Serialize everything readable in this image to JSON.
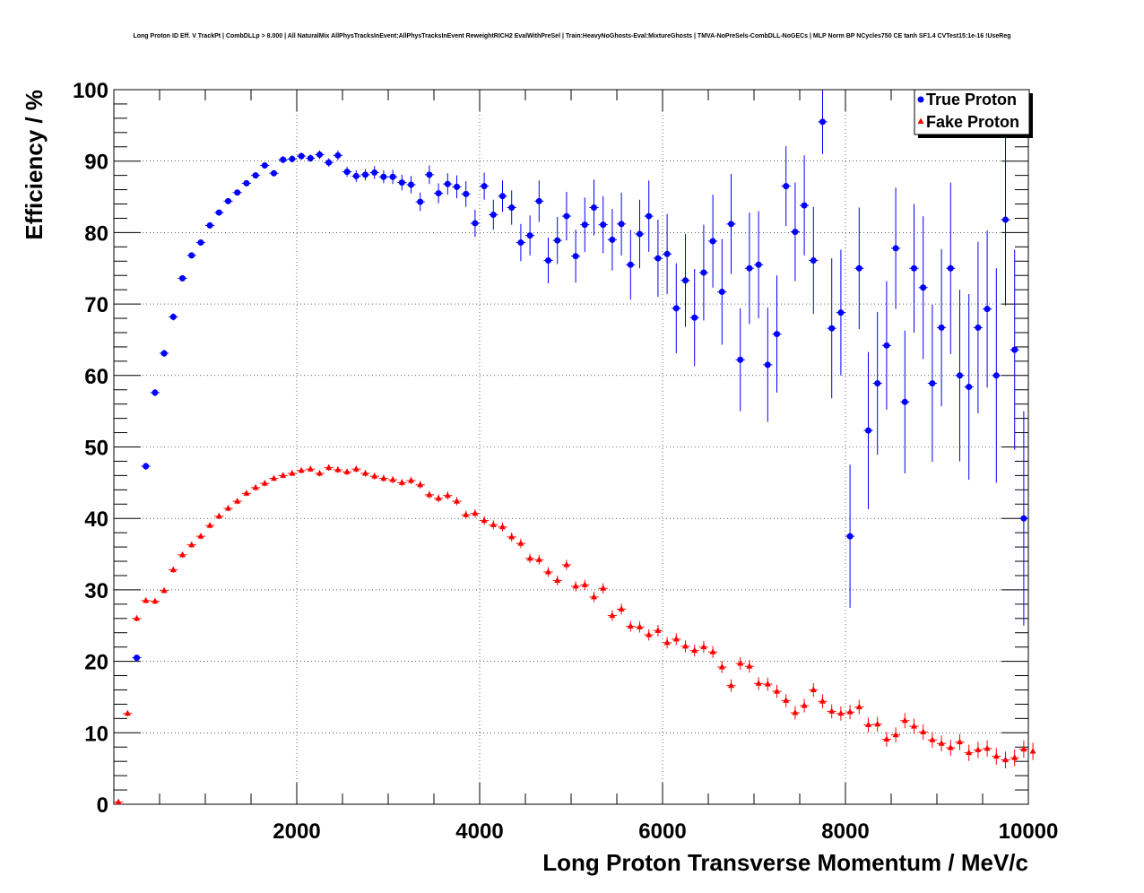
{
  "chart_data": {
    "type": "scatter",
    "title": "Long Proton ID Eff. V TrackPt | CombDLLp > 8.000 | All NaturalMix AllPhysTracksInEvent:AllPhysTracksInEvent ReweightRICH2 EvalWithPreSel | Train:HeavyNoGhosts-Eval:MixtureGhosts | TMVA-NoPreSels-CombDLL-NoGECs | MLP Norm BP NCycles750 CE tanh SF1.4 CVTest15:1e-16 !UseReg",
    "xlabel": "Long Proton Transverse Momentum / MeV/c",
    "ylabel": "Efficiency / %",
    "xlim": [
      0,
      10000
    ],
    "ylim": [
      0,
      100
    ],
    "x_ticks": [
      "2000",
      "4000",
      "6000",
      "8000",
      "10000"
    ],
    "y_ticks": [
      "0",
      "10",
      "20",
      "30",
      "40",
      "50",
      "60",
      "70",
      "80",
      "90",
      "100"
    ],
    "grid": true,
    "legend_position": "top-right",
    "bin_width": 100,
    "series": [
      {
        "name": "True Proton",
        "color": "#0000ff",
        "marker": "circle",
        "x": [
          250,
          350,
          450,
          550,
          650,
          750,
          850,
          950,
          1050,
          1150,
          1250,
          1350,
          1450,
          1550,
          1650,
          1750,
          1850,
          1950,
          2050,
          2150,
          2250,
          2350,
          2450,
          2550,
          2650,
          2750,
          2850,
          2950,
          3050,
          3150,
          3250,
          3350,
          3450,
          3550,
          3650,
          3750,
          3850,
          3950,
          4050,
          4150,
          4250,
          4350,
          4450,
          4550,
          4650,
          4750,
          4850,
          4950,
          5050,
          5150,
          5250,
          5350,
          5450,
          5550,
          5650,
          5750,
          5850,
          5950,
          6050,
          6150,
          6250,
          6350,
          6450,
          6550,
          6650,
          6750,
          6850,
          6950,
          7050,
          7150,
          7250,
          7350,
          7450,
          7550,
          7650,
          7750,
          7850,
          7950,
          8050,
          8150,
          8250,
          8350,
          8450,
          8550,
          8650,
          8750,
          8850,
          8950,
          9050,
          9150,
          9250,
          9350,
          9450,
          9550,
          9650,
          9750,
          9850,
          9950
        ],
        "y": [
          20.5,
          47.3,
          57.6,
          63.1,
          68.2,
          73.6,
          76.8,
          78.6,
          81.0,
          82.8,
          84.4,
          85.6,
          86.9,
          88.0,
          89.4,
          88.3,
          90.2,
          90.3,
          90.7,
          90.4,
          90.9,
          89.8,
          90.8,
          88.5,
          87.9,
          88.1,
          88.4,
          87.8,
          87.8,
          87.0,
          86.7,
          84.3,
          88.1,
          85.5,
          86.8,
          86.4,
          85.4,
          81.3,
          86.5,
          82.5,
          85.1,
          83.5,
          78.6,
          79.6,
          84.4,
          76.1,
          78.9,
          82.3,
          76.7,
          81.1,
          83.5,
          81.1,
          79.0,
          81.2,
          75.5,
          79.8,
          82.3,
          76.4,
          77.0,
          69.4,
          73.3,
          68.1,
          74.4,
          78.8,
          71.7,
          81.2,
          62.2,
          75.0,
          75.5,
          61.5,
          65.8,
          86.5,
          80.1,
          83.8,
          76.1,
          95.5,
          66.6,
          68.8,
          37.5,
          75.0,
          52.3,
          58.9,
          64.2,
          77.8,
          56.3,
          75.0,
          72.3,
          58.9,
          66.7,
          75.0,
          60.0,
          58.4,
          66.7,
          69.3,
          60.0,
          81.8,
          63.6,
          40.0
        ],
        "err": [
          0.4,
          0.5,
          0.5,
          0.5,
          0.5,
          0.4,
          0.4,
          0.4,
          0.4,
          0.4,
          0.4,
          0.4,
          0.4,
          0.4,
          0.4,
          0.4,
          0.5,
          0.5,
          0.5,
          0.5,
          0.6,
          0.6,
          0.7,
          0.7,
          0.8,
          0.8,
          0.9,
          0.9,
          1.0,
          1.1,
          1.2,
          1.3,
          1.3,
          1.4,
          1.5,
          1.6,
          1.8,
          1.9,
          1.9,
          2.1,
          2.2,
          2.4,
          2.6,
          2.8,
          2.9,
          3.2,
          3.3,
          3.4,
          3.7,
          3.8,
          3.9,
          4.0,
          4.3,
          4.4,
          4.9,
          4.8,
          5.0,
          5.4,
          5.6,
          6.3,
          6.5,
          6.8,
          6.7,
          6.5,
          7.4,
          7.0,
          7.2,
          7.8,
          7.5,
          8.0,
          8.2,
          5.6,
          6.9,
          7.0,
          7.5,
          4.5,
          9.8,
          8.8,
          10.0,
          8.5,
          11.0,
          10.0,
          9.0,
          8.5,
          10.0,
          9.0,
          10.0,
          11.0,
          11.0,
          12.0,
          12.0,
          13.0,
          12.0,
          11.0,
          15.0,
          12.0,
          14.0,
          15.0
        ]
      },
      {
        "name": "Fake Proton",
        "color": "#ff0000",
        "marker": "triangle",
        "x": [
          50,
          150,
          250,
          350,
          450,
          550,
          650,
          750,
          850,
          950,
          1050,
          1150,
          1250,
          1350,
          1450,
          1550,
          1650,
          1750,
          1850,
          1950,
          2050,
          2150,
          2250,
          2350,
          2450,
          2550,
          2650,
          2750,
          2850,
          2950,
          3050,
          3150,
          3250,
          3350,
          3450,
          3550,
          3650,
          3750,
          3850,
          3950,
          4050,
          4150,
          4250,
          4350,
          4450,
          4550,
          4650,
          4750,
          4850,
          4950,
          5050,
          5150,
          5250,
          5350,
          5450,
          5550,
          5650,
          5750,
          5850,
          5950,
          6050,
          6150,
          6250,
          6350,
          6450,
          6550,
          6650,
          6750,
          6850,
          6950,
          7050,
          7150,
          7250,
          7350,
          7450,
          7550,
          7650,
          7750,
          7850,
          7950,
          8050,
          8150,
          8250,
          8350,
          8450,
          8550,
          8650,
          8750,
          8850,
          8950,
          9050,
          9150,
          9250,
          9350,
          9450,
          9550,
          9650,
          9750,
          9850,
          9950,
          10050
        ],
        "y": [
          0.3,
          12.7,
          26.0,
          28.5,
          28.4,
          29.9,
          32.8,
          34.9,
          36.3,
          37.5,
          39.0,
          40.3,
          41.4,
          42.4,
          43.5,
          44.3,
          44.9,
          45.6,
          46.0,
          46.3,
          46.7,
          46.9,
          46.3,
          47.1,
          46.8,
          46.5,
          46.9,
          46.3,
          45.9,
          45.6,
          45.4,
          45.0,
          45.3,
          44.7,
          43.3,
          42.8,
          43.2,
          42.4,
          40.5,
          40.7,
          39.7,
          39.1,
          38.8,
          37.4,
          36.5,
          34.4,
          34.2,
          32.5,
          31.3,
          33.5,
          30.5,
          30.7,
          29.0,
          30.2,
          26.4,
          27.3,
          24.9,
          24.8,
          23.7,
          24.3,
          22.6,
          23.1,
          22.1,
          21.5,
          22.0,
          21.3,
          19.2,
          16.6,
          19.7,
          19.3,
          16.9,
          16.8,
          15.8,
          14.5,
          12.8,
          13.8,
          16.0,
          14.4,
          13.0,
          12.7,
          12.9,
          13.6,
          11.1,
          11.2,
          9.1,
          9.7,
          11.7,
          10.9,
          10.1,
          9.0,
          8.5,
          7.9,
          8.7,
          7.2,
          7.6,
          7.8,
          6.7,
          6.2,
          6.5,
          7.7,
          7.4
        ]
      }
    ]
  }
}
